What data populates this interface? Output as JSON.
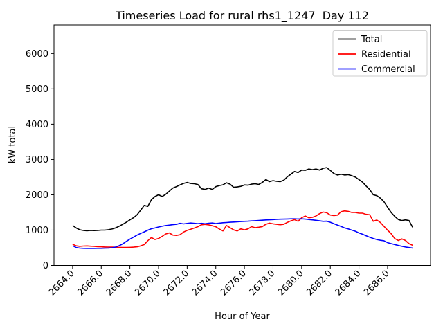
{
  "figure": {
    "title": "Timeseries Load for rural rhs1_1247  Day 112",
    "xlabel": "Hour of Year",
    "ylabel": "kW total",
    "background": "#ffffff"
  },
  "legend": {
    "position": "upper right",
    "entries": [
      {
        "label": "Total",
        "color": "#000000"
      },
      {
        "label": "Residential",
        "color": "#ff0000"
      },
      {
        "label": "Commercial",
        "color": "#0000ff"
      }
    ]
  },
  "chart_data": {
    "type": "line",
    "title": "Timeseries Load for rural rhs1_1247  Day 112",
    "xlabel": "Hour of Year",
    "ylabel": "kW total",
    "xlim": [
      2662.7,
      2689.0
    ],
    "ylim": [
      0,
      6810
    ],
    "grid": false,
    "legend_position": "upper right",
    "x_ticks": [
      2664,
      2666,
      2668,
      2670,
      2672,
      2674,
      2676,
      2678,
      2680,
      2682,
      2684,
      2686
    ],
    "x_tick_labels": [
      "2664.0",
      "2666.0",
      "2668.0",
      "2670.0",
      "2672.0",
      "2674.0",
      "2676.0",
      "2678.0",
      "2680.0",
      "2682.0",
      "2684.0",
      "2686.0"
    ],
    "y_ticks": [
      0,
      1000,
      2000,
      3000,
      4000,
      5000,
      6000
    ],
    "y_tick_labels": [
      "0",
      "1000",
      "2000",
      "3000",
      "4000",
      "5000",
      "6000"
    ],
    "x": [
      2664.0,
      2664.25,
      2664.5,
      2664.75,
      2665.0,
      2665.25,
      2665.5,
      2665.75,
      2666.0,
      2666.25,
      2666.5,
      2666.75,
      2667.0,
      2667.25,
      2667.5,
      2667.75,
      2668.0,
      2668.25,
      2668.5,
      2668.75,
      2669.0,
      2669.25,
      2669.5,
      2669.75,
      2670.0,
      2670.25,
      2670.5,
      2670.75,
      2671.0,
      2671.25,
      2671.5,
      2671.75,
      2672.0,
      2672.25,
      2672.5,
      2672.75,
      2673.0,
      2673.25,
      2673.5,
      2673.75,
      2674.0,
      2674.25,
      2674.5,
      2674.75,
      2675.0,
      2675.25,
      2675.5,
      2675.75,
      2676.0,
      2676.25,
      2676.5,
      2676.75,
      2677.0,
      2677.25,
      2677.5,
      2677.75,
      2678.0,
      2678.25,
      2678.5,
      2678.75,
      2679.0,
      2679.25,
      2679.5,
      2679.75,
      2680.0,
      2680.25,
      2680.5,
      2680.75,
      2681.0,
      2681.25,
      2681.5,
      2681.75,
      2682.0,
      2682.25,
      2682.5,
      2682.75,
      2683.0,
      2683.25,
      2683.5,
      2683.75,
      2684.0,
      2684.25,
      2684.5,
      2684.75,
      2685.0,
      2685.25,
      2685.5,
      2685.75,
      2686.0,
      2686.25,
      2686.5,
      2686.75,
      2687.0,
      2687.25,
      2687.5,
      2687.75
    ],
    "series": [
      {
        "name": "Total",
        "color": "#000000",
        "values": [
          1130,
          1060,
          1010,
          990,
          980,
          992,
          985,
          992,
          1000,
          1000,
          1012,
          1030,
          1062,
          1110,
          1165,
          1222,
          1290,
          1350,
          1432,
          1560,
          1700,
          1672,
          1860,
          1950,
          2000,
          1952,
          2012,
          2100,
          2190,
          2232,
          2280,
          2322,
          2350,
          2320,
          2312,
          2290,
          2172,
          2152,
          2190,
          2152,
          2230,
          2262,
          2282,
          2340,
          2300,
          2212,
          2222,
          2240,
          2280,
          2272,
          2300,
          2312,
          2292,
          2350,
          2430,
          2372,
          2400,
          2382,
          2372,
          2412,
          2510,
          2582,
          2660,
          2630,
          2700,
          2692,
          2732,
          2712,
          2732,
          2700,
          2752,
          2772,
          2690,
          2600,
          2560,
          2582,
          2560,
          2572,
          2540,
          2500,
          2430,
          2360,
          2250,
          2150,
          2000,
          1975,
          1905,
          1800,
          1650,
          1500,
          1390,
          1300,
          1270,
          1290,
          1270,
          1080
        ]
      },
      {
        "name": "Residential",
        "color": "#ff0000",
        "values": [
          600,
          555,
          540,
          548,
          552,
          545,
          538,
          532,
          528,
          522,
          518,
          518,
          515,
          512,
          508,
          508,
          512,
          518,
          528,
          552,
          590,
          700,
          790,
          732,
          762,
          822,
          890,
          920,
          858,
          848,
          868,
          945,
          992,
          1022,
          1058,
          1098,
          1150,
          1162,
          1148,
          1122,
          1095,
          1030,
          975,
          1130,
          1068,
          1005,
          975,
          1035,
          1005,
          1035,
          1098,
          1068,
          1082,
          1100,
          1165,
          1198,
          1178,
          1165,
          1152,
          1165,
          1218,
          1262,
          1295,
          1248,
          1348,
          1400,
          1348,
          1362,
          1400,
          1465,
          1511,
          1491,
          1426,
          1412,
          1425,
          1520,
          1544,
          1530,
          1500,
          1499,
          1480,
          1479,
          1446,
          1435,
          1250,
          1285,
          1215,
          1105,
          1000,
          900,
          760,
          705,
          750,
          705,
          615,
          570
        ]
      },
      {
        "name": "Commercial",
        "color": "#0000ff",
        "values": [
          560,
          505,
          490,
          485,
          480,
          480,
          480,
          484,
          485,
          488,
          492,
          500,
          520,
          558,
          610,
          680,
          742,
          800,
          858,
          905,
          948,
          998,
          1038,
          1060,
          1088,
          1110,
          1128,
          1140,
          1155,
          1165,
          1192,
          1175,
          1190,
          1202,
          1192,
          1182,
          1192,
          1180,
          1195,
          1202,
          1185,
          1198,
          1210,
          1215,
          1222,
          1228,
          1235,
          1242,
          1248,
          1252,
          1260,
          1265,
          1272,
          1280,
          1288,
          1292,
          1298,
          1305,
          1310,
          1312,
          1315,
          1318,
          1318,
          1315,
          1318,
          1312,
          1300,
          1290,
          1278,
          1262,
          1248,
          1252,
          1222,
          1182,
          1140,
          1105,
          1062,
          1035,
          1000,
          968,
          920,
          884,
          840,
          798,
          762,
          733,
          712,
          698,
          645,
          618,
          592,
          565,
          542,
          522,
          505,
          492
        ]
      }
    ]
  }
}
